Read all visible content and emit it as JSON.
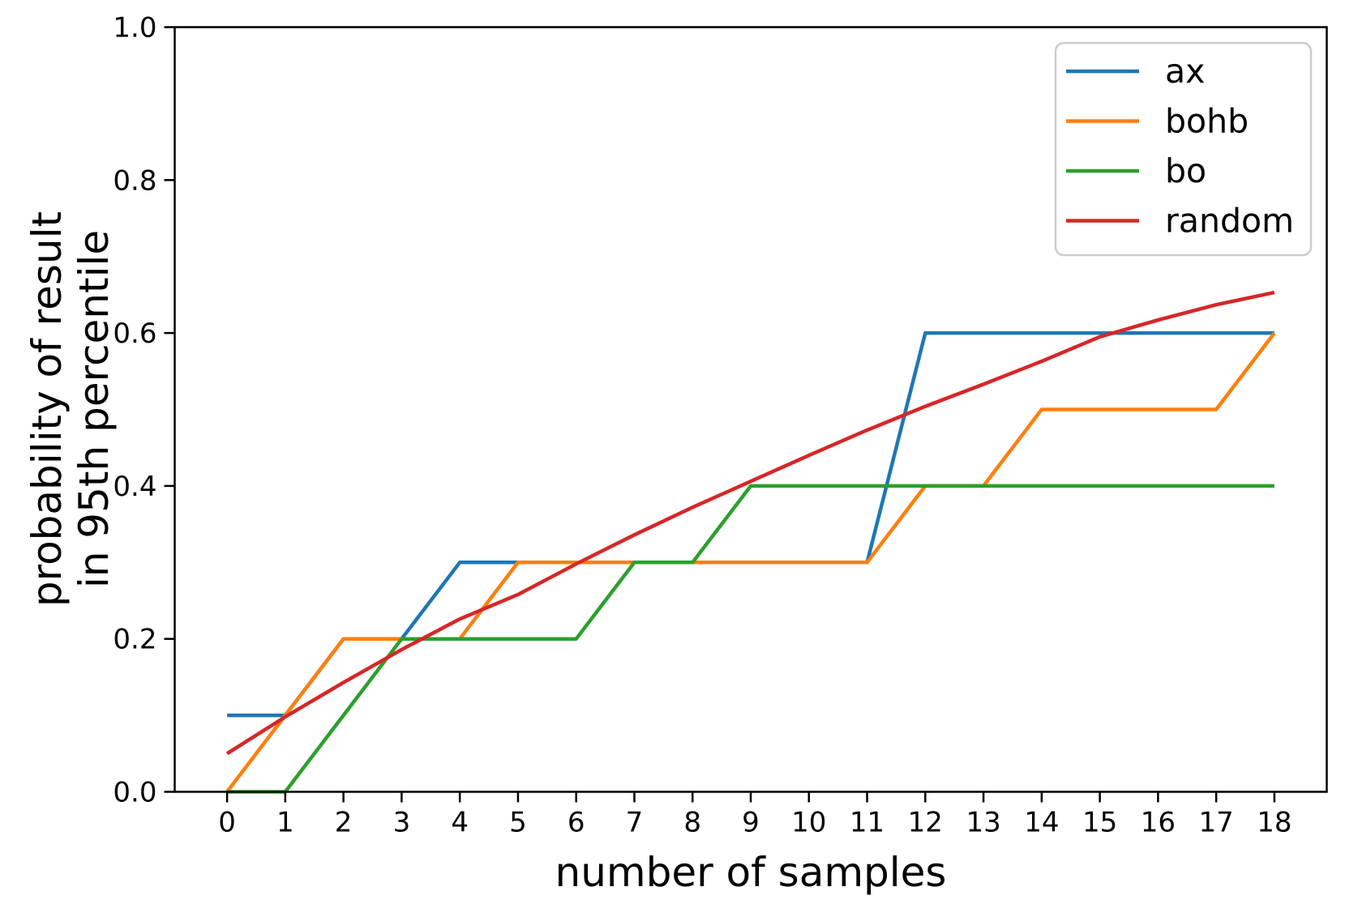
{
  "chart_data": {
    "type": "line",
    "xlabel": "number of samples",
    "ylabel_lines": [
      "probability of result",
      "in 95th percentile"
    ],
    "xlim": [
      -0.9,
      18.9
    ],
    "ylim": [
      0.0,
      1.0
    ],
    "grid": false,
    "x": [
      0,
      1,
      2,
      3,
      4,
      5,
      6,
      7,
      8,
      9,
      10,
      11,
      12,
      13,
      14,
      15,
      16,
      17,
      18
    ],
    "xtick_values": [
      0,
      1,
      2,
      3,
      4,
      5,
      6,
      7,
      8,
      9,
      10,
      11,
      12,
      13,
      14,
      15,
      16,
      17,
      18
    ],
    "xtick_labels": [
      "0",
      "1",
      "2",
      "3",
      "4",
      "5",
      "6",
      "7",
      "8",
      "9",
      "10",
      "11",
      "12",
      "13",
      "14",
      "15",
      "16",
      "17",
      "18"
    ],
    "ytick_values": [
      0.0,
      0.2,
      0.4,
      0.6,
      0.8,
      1.0
    ],
    "ytick_labels": [
      "0.0",
      "0.2",
      "0.4",
      "0.6",
      "0.8",
      "1.0"
    ],
    "series": [
      {
        "name": "ax",
        "color": "#1f77b4",
        "values": [
          0.1,
          0.1,
          0.2,
          0.2,
          0.3,
          0.3,
          0.3,
          0.3,
          0.3,
          0.3,
          0.3,
          0.3,
          0.6,
          0.6,
          0.6,
          0.6,
          0.6,
          0.6,
          0.6
        ]
      },
      {
        "name": "bohb",
        "color": "#ff7f0e",
        "values": [
          0.0,
          0.1,
          0.2,
          0.2,
          0.2,
          0.3,
          0.3,
          0.3,
          0.3,
          0.3,
          0.3,
          0.3,
          0.4,
          0.4,
          0.5,
          0.5,
          0.5,
          0.5,
          0.6
        ]
      },
      {
        "name": "bo",
        "color": "#2ca02c",
        "values": [
          0.0,
          0.0,
          0.1,
          0.2,
          0.2,
          0.2,
          0.2,
          0.3,
          0.3,
          0.4,
          0.4,
          0.4,
          0.4,
          0.4,
          0.4,
          0.4,
          0.4,
          0.4,
          0.4
        ]
      },
      {
        "name": "random",
        "color": "#d62728",
        "values": [
          0.05,
          0.098,
          0.143,
          0.186,
          0.226,
          0.258,
          0.298,
          0.336,
          0.372,
          0.406,
          0.44,
          0.473,
          0.504,
          0.533,
          0.563,
          0.595,
          0.617,
          0.637,
          0.653
        ]
      }
    ],
    "legend": {
      "location": "upper right",
      "labels": [
        "ax",
        "bohb",
        "bo",
        "random"
      ]
    }
  }
}
